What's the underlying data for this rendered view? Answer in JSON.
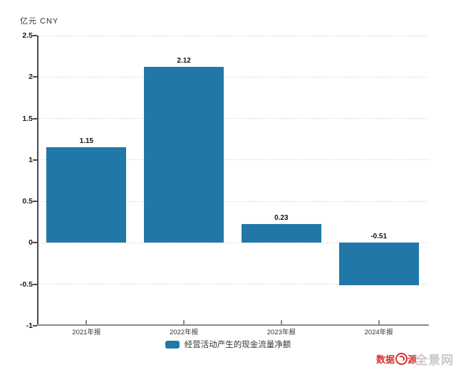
{
  "header": {
    "unit_label": "亿元 CNY"
  },
  "chart_data": {
    "type": "bar",
    "title": "",
    "ylabel": "亿元 CNY",
    "categories": [
      "2021年报",
      "2022年报",
      "2023年报",
      "2024年报"
    ],
    "series": [
      {
        "name": "经营活动产生的现金流量净额",
        "values": [
          1.15,
          2.12,
          0.23,
          -0.51
        ],
        "color": "#2178a8"
      }
    ],
    "data_labels": [
      "1.15",
      "2.12",
      "0.23",
      "-0.51"
    ],
    "ylim": [
      -1,
      2.5
    ],
    "ytick_interval": 0.5,
    "ytick_labels": [
      "2.5",
      "2",
      "1.5",
      "1",
      "0.5",
      "0",
      "-0.5",
      "-1"
    ],
    "grid": "dashed-horizontal",
    "legend_position": "bottom-center"
  },
  "legend": {
    "label": "经营活动产生的现金流量净额",
    "swatch_color": "#2178a8"
  },
  "watermark": {
    "part1": "数据",
    "icon": "sina-eye-logo",
    "part2": "源",
    "site": "全景网",
    "red_color": "#d2342e",
    "gray_color": "#c9c9c9"
  },
  "colors": {
    "bar": "#2178a8",
    "grid": "#dddddd",
    "axis": "#8a8a8a"
  }
}
